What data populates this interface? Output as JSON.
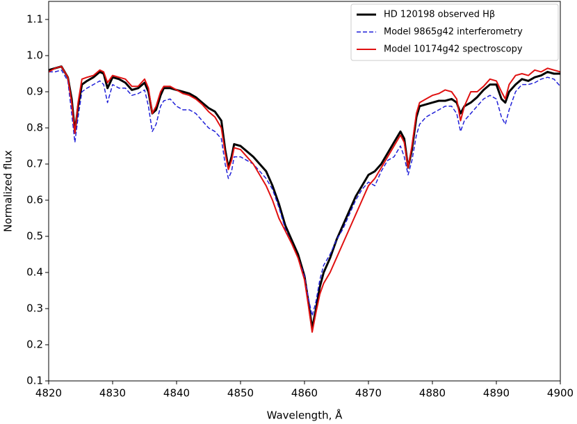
{
  "chart_data": {
    "type": "line",
    "xlabel": "Wavelength, Å",
    "ylabel": "Normalized flux",
    "xlim": [
      4820,
      4900
    ],
    "ylim": [
      0.1,
      1.15
    ],
    "xticks": [
      4820,
      4830,
      4840,
      4850,
      4860,
      4870,
      4880,
      4890,
      4900
    ],
    "yticks": [
      0.1,
      0.2,
      0.3,
      0.4,
      0.5,
      0.6,
      0.7,
      0.8,
      0.9,
      {
        "value": 1,
        "label": "1.0"
      },
      1.1
    ],
    "legend": "upper right",
    "x": [
      4820,
      4821,
      4822,
      4823,
      4823.6,
      4824.1,
      4824.6,
      4825.2,
      4826,
      4827,
      4828,
      4828.6,
      4829.2,
      4830,
      4831,
      4832,
      4833,
      4834,
      4835,
      4835.6,
      4836.2,
      4836.8,
      4837.5,
      4838,
      4839,
      4840,
      4841,
      4842,
      4843,
      4844,
      4845,
      4846,
      4847,
      4847.6,
      4848.1,
      4848.6,
      4849,
      4850,
      4851,
      4852,
      4853,
      4854,
      4855,
      4856,
      4857,
      4858,
      4859,
      4860,
      4860.6,
      4861.2,
      4861.8,
      4862.4,
      4863,
      4864,
      4865,
      4866,
      4867,
      4868,
      4869,
      4870,
      4871,
      4872,
      4873,
      4874,
      4875,
      4875.6,
      4876.2,
      4876.8,
      4877.5,
      4878,
      4879,
      4880,
      4881,
      4882,
      4883,
      4883.8,
      4884.4,
      4885,
      4886,
      4887,
      4888,
      4889,
      4890,
      4890.8,
      4891.4,
      4892,
      4893,
      4894,
      4895,
      4896,
      4897,
      4898,
      4899,
      4900
    ],
    "series": [
      {
        "name": "HD 120198 observed Hβ",
        "color": "#000000",
        "style": "solid",
        "width": 3,
        "values": [
          0.96,
          0.965,
          0.97,
          0.94,
          0.88,
          0.79,
          0.86,
          0.92,
          0.93,
          0.94,
          0.955,
          0.95,
          0.91,
          0.94,
          0.935,
          0.925,
          0.905,
          0.91,
          0.925,
          0.9,
          0.84,
          0.85,
          0.89,
          0.91,
          0.91,
          0.905,
          0.9,
          0.895,
          0.885,
          0.87,
          0.855,
          0.845,
          0.82,
          0.74,
          0.69,
          0.72,
          0.755,
          0.75,
          0.735,
          0.72,
          0.7,
          0.68,
          0.64,
          0.59,
          0.53,
          0.49,
          0.45,
          0.39,
          0.32,
          0.245,
          0.3,
          0.36,
          0.4,
          0.44,
          0.49,
          0.53,
          0.57,
          0.61,
          0.64,
          0.67,
          0.68,
          0.7,
          0.73,
          0.76,
          0.79,
          0.77,
          0.69,
          0.74,
          0.83,
          0.86,
          0.865,
          0.87,
          0.875,
          0.875,
          0.88,
          0.87,
          0.84,
          0.86,
          0.87,
          0.885,
          0.905,
          0.92,
          0.92,
          0.88,
          0.87,
          0.9,
          0.92,
          0.935,
          0.93,
          0.94,
          0.945,
          0.955,
          0.95,
          0.95
        ]
      },
      {
        "name": "Model 9865g42 interferometry",
        "color": "#1f1fd8",
        "style": "dashed",
        "width": 1.5,
        "values": [
          0.955,
          0.955,
          0.96,
          0.93,
          0.84,
          0.76,
          0.83,
          0.9,
          0.91,
          0.92,
          0.93,
          0.92,
          0.87,
          0.92,
          0.91,
          0.91,
          0.89,
          0.895,
          0.905,
          0.86,
          0.79,
          0.81,
          0.86,
          0.875,
          0.88,
          0.86,
          0.85,
          0.85,
          0.84,
          0.82,
          0.8,
          0.79,
          0.77,
          0.7,
          0.66,
          0.68,
          0.72,
          0.72,
          0.71,
          0.7,
          0.68,
          0.66,
          0.63,
          0.58,
          0.52,
          0.48,
          0.44,
          0.39,
          0.33,
          0.28,
          0.32,
          0.38,
          0.42,
          0.45,
          0.49,
          0.52,
          0.56,
          0.6,
          0.63,
          0.65,
          0.64,
          0.68,
          0.71,
          0.72,
          0.75,
          0.72,
          0.67,
          0.71,
          0.78,
          0.81,
          0.83,
          0.84,
          0.85,
          0.86,
          0.86,
          0.84,
          0.79,
          0.82,
          0.84,
          0.86,
          0.88,
          0.89,
          0.88,
          0.83,
          0.81,
          0.85,
          0.9,
          0.92,
          0.92,
          0.925,
          0.935,
          0.94,
          0.935,
          0.915
        ]
      },
      {
        "name": "Model 10174g42 spectroscopy",
        "color": "#e01010",
        "style": "solid",
        "width": 2,
        "values": [
          0.955,
          0.965,
          0.97,
          0.94,
          0.87,
          0.785,
          0.87,
          0.935,
          0.94,
          0.945,
          0.96,
          0.955,
          0.925,
          0.945,
          0.94,
          0.935,
          0.915,
          0.915,
          0.935,
          0.91,
          0.84,
          0.86,
          0.9,
          0.915,
          0.915,
          0.905,
          0.895,
          0.89,
          0.88,
          0.865,
          0.845,
          0.83,
          0.8,
          0.73,
          0.685,
          0.71,
          0.745,
          0.74,
          0.72,
          0.7,
          0.67,
          0.64,
          0.6,
          0.55,
          0.515,
          0.48,
          0.44,
          0.38,
          0.31,
          0.235,
          0.29,
          0.34,
          0.37,
          0.4,
          0.44,
          0.48,
          0.52,
          0.56,
          0.6,
          0.64,
          0.66,
          0.69,
          0.72,
          0.75,
          0.78,
          0.76,
          0.69,
          0.75,
          0.84,
          0.87,
          0.88,
          0.89,
          0.895,
          0.905,
          0.9,
          0.88,
          0.82,
          0.86,
          0.9,
          0.9,
          0.915,
          0.935,
          0.93,
          0.9,
          0.88,
          0.92,
          0.945,
          0.95,
          0.945,
          0.96,
          0.955,
          0.965,
          0.96,
          0.955
        ]
      }
    ]
  }
}
